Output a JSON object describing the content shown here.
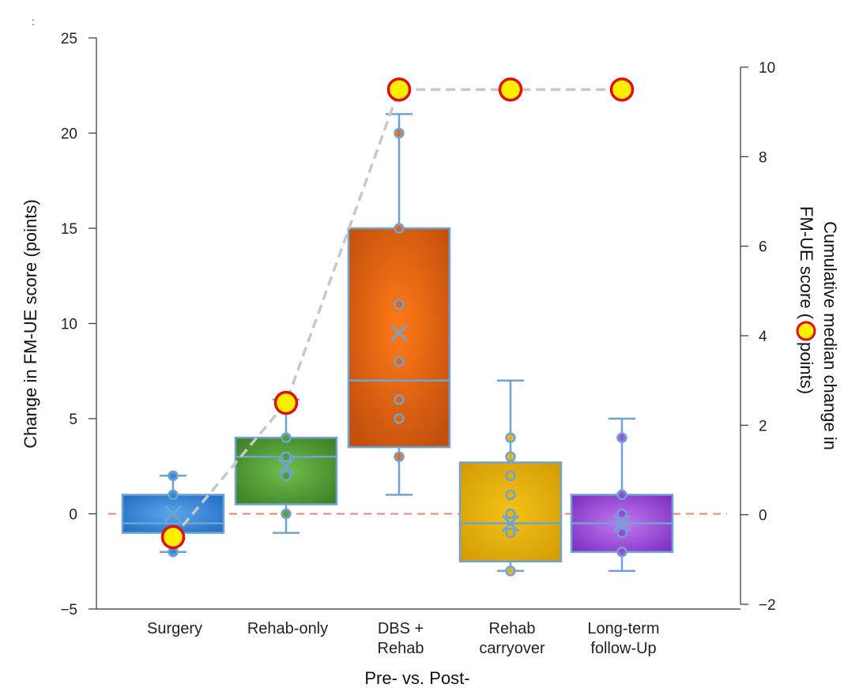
{
  "corner_mark": ":",
  "chart_data": {
    "type": "box",
    "xlabel": "Pre- vs. Post-",
    "ylabel_left": "Change in FM-UE score (points)",
    "ylabel_right_line1": "Cumulative median change in",
    "ylabel_right_line2_before": "FM-UE score (",
    "ylabel_right_line2_after": " points)",
    "ylim_left": [
      -5,
      25
    ],
    "yticks_left": [
      -5,
      0,
      5,
      10,
      15,
      20,
      25
    ],
    "ylim_right": [
      -2,
      10
    ],
    "yticks_right": [
      -2,
      0,
      2,
      4,
      6,
      8,
      10
    ],
    "reference_line_y": 0,
    "reference_line_color": "#e8837a",
    "categories": [
      {
        "line1": "Surgery",
        "line2": ""
      },
      {
        "line1": "Rehab-only",
        "line2": ""
      },
      {
        "line1": "DBS +",
        "line2": "Rehab"
      },
      {
        "line1": "Rehab",
        "line2": "carryover"
      },
      {
        "line1": "Long-term",
        "line2": "follow-Up"
      }
    ],
    "boxes": [
      {
        "q1": -1,
        "median": -0.5,
        "q3": 1,
        "mean": 0,
        "whisker_low": -2,
        "whisker_high": 2,
        "points": [
          2,
          1,
          -1,
          -2
        ],
        "color": "#2f80d6"
      },
      {
        "q1": 0.5,
        "median": 3,
        "q3": 4,
        "mean": 2.5,
        "whisker_low": -1,
        "whisker_high": 6,
        "points": [
          6,
          4,
          3,
          2,
          0
        ],
        "color": "#4d9a30"
      },
      {
        "q1": 3.5,
        "median": 7,
        "q3": 15,
        "mean": 9.5,
        "whisker_low": 1,
        "whisker_high": 21,
        "points": [
          20,
          15,
          11,
          8,
          6,
          5,
          3
        ],
        "color": "#e3620f"
      },
      {
        "q1": -2.5,
        "median": -0.5,
        "q3": 2.7,
        "mean": -0.5,
        "whisker_low": -3,
        "whisker_high": 7,
        "points": [
          4,
          3,
          2,
          1,
          0,
          -1,
          -3
        ],
        "color": "#e3b00a"
      },
      {
        "q1": -2,
        "median": -0.5,
        "q3": 1,
        "mean": -0.5,
        "whisker_low": -3,
        "whisker_high": 5,
        "points": [
          4,
          1,
          0,
          -1,
          -2
        ],
        "color": "#9b3fd6"
      }
    ],
    "cumulative_median": [
      -0.5,
      2.5,
      9.5,
      9.5,
      9.5
    ],
    "colors": {
      "whisker": "#6fa3d4",
      "marker_fill": "#ffee00",
      "marker_stroke": "#e01010",
      "cumulative_line": "#c8c8c8"
    }
  }
}
